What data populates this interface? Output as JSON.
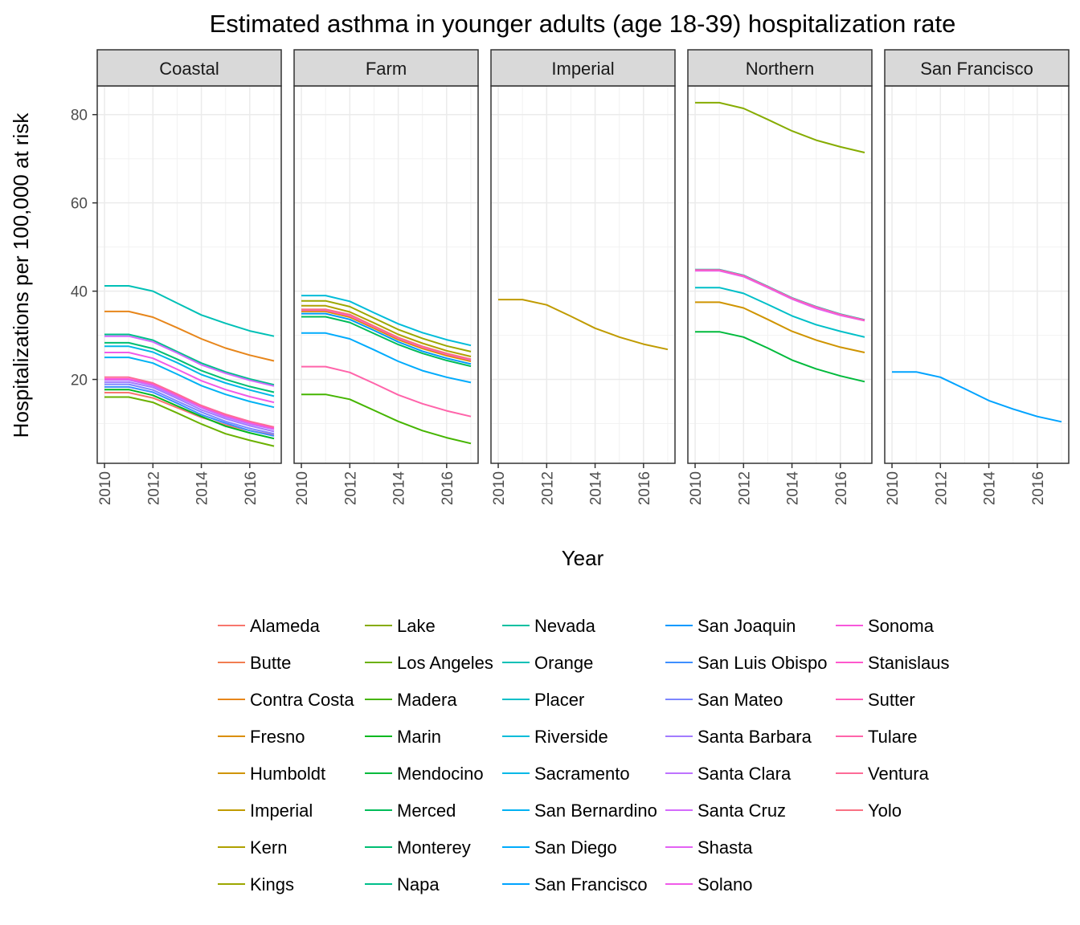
{
  "chart_data": {
    "type": "line",
    "title": "Estimated asthma in younger adults (age 18-39) hospitalization rate",
    "xlabel": "Year",
    "ylabel": "Hospitalizations per 100,000 at risk",
    "x": [
      2010,
      2011,
      2012,
      2013,
      2014,
      2015,
      2016,
      2017
    ],
    "xlim": [
      2009.7,
      2017.3
    ],
    "ylim": [
      1.0,
      86.5
    ],
    "x_ticks": [
      "2010",
      "2012",
      "2014",
      "2016"
    ],
    "y_ticks": [
      "20",
      "40",
      "60",
      "80"
    ],
    "grid": true,
    "legend_position": "bottom",
    "facets": [
      "Coastal",
      "Farm",
      "Imperial",
      "Northern",
      "San Francisco"
    ],
    "series": [
      {
        "name": "Alameda",
        "color": "#F8766D",
        "facet": "Coastal",
        "values": [
          17.0,
          17.0,
          15.8,
          13.6,
          11.4,
          9.7,
          8.4,
          7.4
        ]
      },
      {
        "name": "Butte",
        "color": "#F17D51",
        "facet": "Northern",
        "values": [
          44.7,
          44.7,
          43.4,
          40.9,
          38.3,
          36.3,
          34.6,
          33.5
        ]
      },
      {
        "name": "Contra Costa",
        "color": "#E7861B",
        "facet": "Coastal",
        "values": [
          35.4,
          35.4,
          34.1,
          31.7,
          29.2,
          27.1,
          25.5,
          24.2
        ]
      },
      {
        "name": "Fresno",
        "color": "#DB8E00",
        "facet": "Farm",
        "values": [
          35.4,
          35.4,
          34.1,
          31.6,
          29.0,
          27.0,
          25.4,
          24.1
        ]
      },
      {
        "name": "Humboldt",
        "color": "#CF9400",
        "facet": "Northern",
        "values": [
          37.5,
          37.5,
          36.2,
          33.6,
          30.9,
          28.9,
          27.3,
          26.1
        ]
      },
      {
        "name": "Imperial",
        "color": "#C09B00",
        "facet": "Imperial",
        "values": [
          38.1,
          38.1,
          36.9,
          34.3,
          31.6,
          29.6,
          28.0,
          26.8
        ]
      },
      {
        "name": "Kern",
        "color": "#AFA100",
        "facet": "Farm",
        "values": [
          36.7,
          36.7,
          35.3,
          32.8,
          30.2,
          28.2,
          26.5,
          25.2
        ]
      },
      {
        "name": "Kings",
        "color": "#9CA700",
        "facet": "Farm",
        "values": [
          37.8,
          37.8,
          36.5,
          33.9,
          31.3,
          29.3,
          27.6,
          26.3
        ]
      },
      {
        "name": "Lake",
        "color": "#86AC00",
        "facet": "Northern",
        "values": [
          82.7,
          82.7,
          81.4,
          78.9,
          76.3,
          74.2,
          72.7,
          71.4
        ]
      },
      {
        "name": "Los Angeles",
        "color": "#6BB100",
        "facet": "Coastal",
        "values": [
          16.0,
          16.0,
          14.8,
          12.4,
          9.9,
          7.7,
          6.2,
          4.9
        ]
      },
      {
        "name": "Madera",
        "color": "#45B500",
        "facet": "Farm",
        "values": [
          16.6,
          16.6,
          15.5,
          13.0,
          10.5,
          8.4,
          6.8,
          5.5
        ]
      },
      {
        "name": "Marin",
        "color": "#00B81F",
        "facet": "Coastal",
        "values": [
          17.7,
          17.7,
          16.4,
          14.0,
          11.6,
          9.4,
          7.9,
          6.6
        ]
      },
      {
        "name": "Mendocino",
        "color": "#00BA3C",
        "facet": "Northern",
        "values": [
          30.8,
          30.8,
          29.6,
          27.1,
          24.4,
          22.4,
          20.8,
          19.5
        ]
      },
      {
        "name": "Merced",
        "color": "#00BC59",
        "facet": "Farm",
        "values": [
          34.2,
          34.2,
          32.9,
          30.4,
          27.9,
          25.9,
          24.3,
          23.0
        ]
      },
      {
        "name": "Monterey",
        "color": "#00BE73",
        "facet": "Coastal",
        "values": [
          28.3,
          28.3,
          27.0,
          24.6,
          22.0,
          20.0,
          18.4,
          17.1
        ]
      },
      {
        "name": "Napa",
        "color": "#00BF8B",
        "facet": "Coastal",
        "values": [
          30.2,
          30.2,
          28.9,
          26.3,
          23.7,
          21.7,
          20.1,
          18.8
        ]
      },
      {
        "name": "Nevada",
        "color": "#00C0A1",
        "facet": "Northern",
        "values": [
          44.9,
          44.9,
          43.6,
          41.1,
          38.5,
          36.5,
          34.8,
          33.5
        ]
      },
      {
        "name": "Orange",
        "color": "#00C0B6",
        "facet": "Coastal",
        "values": [
          41.2,
          41.2,
          40.0,
          37.3,
          34.6,
          32.7,
          31.0,
          29.8
        ]
      },
      {
        "name": "Placer",
        "color": "#00BFC8",
        "facet": "Northern",
        "values": [
          40.8,
          40.8,
          39.5,
          37.0,
          34.4,
          32.4,
          30.9,
          29.6
        ]
      },
      {
        "name": "Riverside",
        "color": "#00BCD9",
        "facet": "Farm",
        "values": [
          39.0,
          39.0,
          37.7,
          35.1,
          32.6,
          30.6,
          29.0,
          27.7
        ]
      },
      {
        "name": "Sacramento",
        "color": "#00B8E7",
        "facet": "Coastal",
        "values": [
          27.5,
          27.5,
          26.2,
          23.8,
          21.1,
          19.2,
          17.6,
          16.2
        ]
      },
      {
        "name": "San Bernardino",
        "color": "#00B2F3",
        "facet": "Coastal",
        "values": [
          25.0,
          25.0,
          23.7,
          21.2,
          18.6,
          16.6,
          15.0,
          13.7
        ]
      },
      {
        "name": "San Diego",
        "color": "#00ABFC",
        "facet": "Farm",
        "values": [
          30.5,
          30.5,
          29.2,
          26.7,
          24.1,
          22.0,
          20.5,
          19.3
        ]
      },
      {
        "name": "San Francisco",
        "color": "#00A3FF",
        "facet": "San Francisco",
        "values": [
          21.7,
          21.7,
          20.5,
          17.9,
          15.2,
          13.3,
          11.6,
          10.4
        ]
      },
      {
        "name": "San Joaquin",
        "color": "#0099FF",
        "facet": "Farm",
        "values": [
          34.9,
          34.9,
          33.6,
          31.1,
          28.5,
          26.4,
          24.8,
          23.5
        ]
      },
      {
        "name": "San Luis Obispo",
        "color": "#3D8FFF",
        "facet": "Coastal",
        "values": [
          18.3,
          18.3,
          17.1,
          14.6,
          12.0,
          10.1,
          8.4,
          7.2
        ]
      },
      {
        "name": "San Mateo",
        "color": "#7D86FF",
        "facet": "Coastal",
        "values": [
          18.9,
          18.9,
          17.6,
          15.1,
          12.6,
          10.5,
          8.9,
          7.7
        ]
      },
      {
        "name": "Santa Barbara",
        "color": "#A37CFF",
        "facet": "Coastal",
        "values": [
          19.4,
          19.4,
          18.2,
          15.7,
          13.1,
          11.1,
          9.5,
          8.2
        ]
      },
      {
        "name": "Santa Clara",
        "color": "#BE73FF",
        "facet": "Coastal",
        "values": [
          19.9,
          19.9,
          18.6,
          16.1,
          13.6,
          11.5,
          9.9,
          8.7
        ]
      },
      {
        "name": "Santa Cruz",
        "color": "#D36AFC",
        "facet": "Coastal",
        "values": [
          29.8,
          29.8,
          28.5,
          26.0,
          23.3,
          21.4,
          19.8,
          18.5
        ]
      },
      {
        "name": "Shasta",
        "color": "#E362F4",
        "facet": "Northern",
        "values": [
          44.6,
          44.6,
          43.3,
          40.8,
          38.2,
          36.1,
          34.5,
          33.3
        ]
      },
      {
        "name": "Solano",
        "color": "#F05BE9",
        "facet": "Coastal",
        "values": [
          26.1,
          26.1,
          24.8,
          22.3,
          19.7,
          17.7,
          16.1,
          14.8
        ]
      },
      {
        "name": "Sonoma",
        "color": "#F858DC",
        "facet": "Coastal",
        "values": [
          20.1,
          20.1,
          18.9,
          16.4,
          13.8,
          11.8,
          10.2,
          8.9
        ]
      },
      {
        "name": "Stanislaus",
        "color": "#FE59CD",
        "facet": "Farm",
        "values": [
          35.7,
          35.7,
          34.4,
          31.9,
          29.3,
          27.3,
          25.7,
          24.4
        ]
      },
      {
        "name": "Sutter",
        "color": "#FF5EBC",
        "facet": "Northern",
        "values": [
          44.8,
          44.8,
          43.5,
          41.0,
          38.4,
          36.4,
          34.7,
          33.4
        ]
      },
      {
        "name": "Tulare",
        "color": "#FF64AA",
        "facet": "Farm",
        "values": [
          22.9,
          22.9,
          21.6,
          19.1,
          16.5,
          14.5,
          12.9,
          11.6
        ]
      },
      {
        "name": "Ventura",
        "color": "#FD6B97",
        "facet": "Coastal",
        "values": [
          20.5,
          20.5,
          19.2,
          16.7,
          14.1,
          12.1,
          10.5,
          9.2
        ]
      },
      {
        "name": "Yolo",
        "color": "#F97183",
        "facet": "Farm",
        "values": [
          35.9,
          35.9,
          34.7,
          32.1,
          29.5,
          27.5,
          25.9,
          24.6
        ]
      }
    ]
  }
}
